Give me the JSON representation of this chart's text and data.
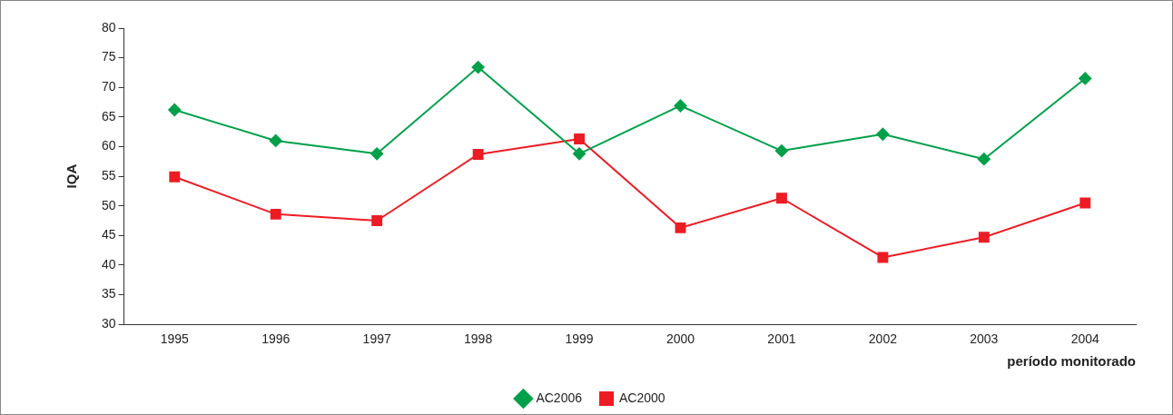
{
  "chart_data": {
    "type": "line",
    "ylabel": "IQA",
    "xlabel": "período monitorado",
    "categories": [
      "1995",
      "1996",
      "1997",
      "1998",
      "1999",
      "2000",
      "2001",
      "2002",
      "2003",
      "2004"
    ],
    "series": [
      {
        "name": "AC2006",
        "color": "#00a04a",
        "marker": "diamond",
        "values": [
          66.2,
          61.0,
          58.8,
          73.4,
          58.8,
          66.9,
          59.3,
          62.1,
          57.9,
          71.5
        ]
      },
      {
        "name": "AC2000",
        "color": "#ed1c24",
        "marker": "square",
        "values": [
          54.9,
          48.6,
          47.5,
          58.7,
          61.3,
          46.3,
          51.3,
          41.3,
          44.7,
          50.5
        ]
      }
    ],
    "ylim": [
      30,
      80
    ],
    "yticks": [
      30,
      35,
      40,
      45,
      50,
      55,
      60,
      65,
      70,
      75,
      80
    ],
    "grid": false,
    "legend": "bottom"
  }
}
